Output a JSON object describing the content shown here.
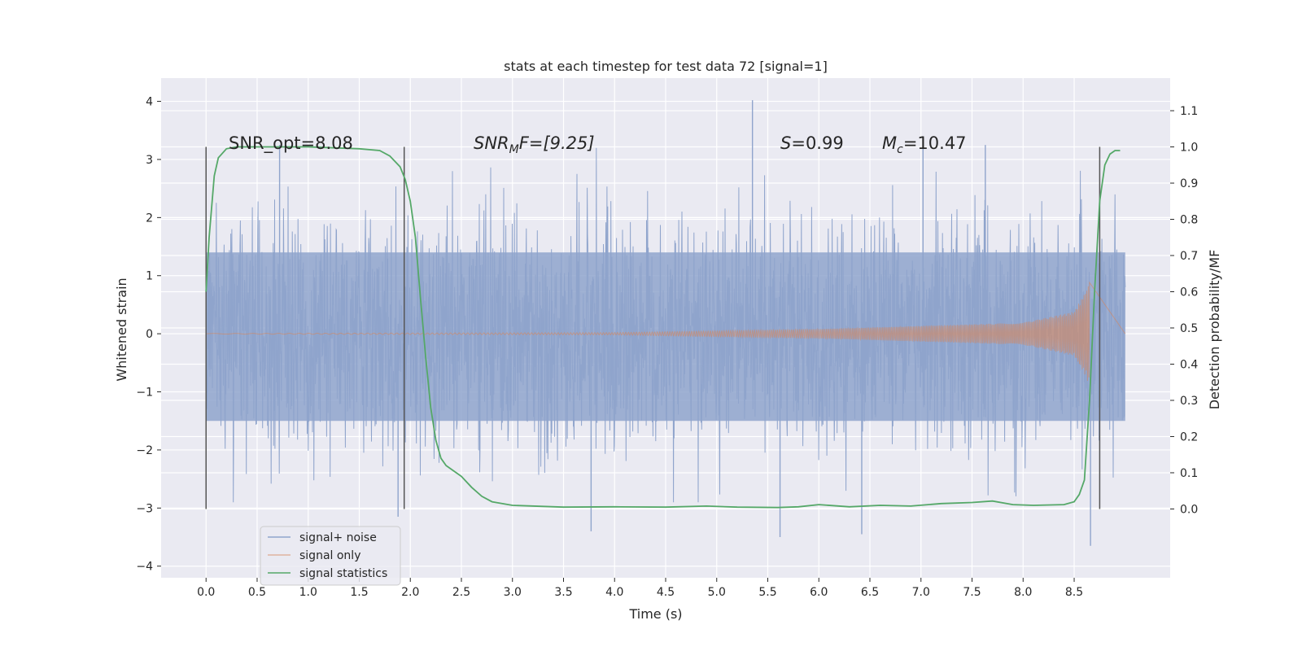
{
  "chart_data": {
    "type": "line",
    "title": "stats at each timestep for test data 72 [signal=1]",
    "xlabel": "Time (s)",
    "ylabel_left": "Whitened strain",
    "ylabel_right": "Detection probability/MF",
    "xlim": [
      -0.44,
      9.44
    ],
    "ylim_left": [
      -4.2,
      4.4
    ],
    "ylim_right": [
      -0.19,
      1.19
    ],
    "x_ticks": [
      "0.0",
      "0.5",
      "1.0",
      "1.5",
      "2.0",
      "2.5",
      "3.0",
      "3.5",
      "4.0",
      "4.5",
      "5.0",
      "5.5",
      "6.0",
      "6.5",
      "7.0",
      "7.5",
      "8.0",
      "8.5"
    ],
    "y_ticks_left": [
      "4",
      "3",
      "2",
      "1",
      "0",
      "−1",
      "−2",
      "−3",
      "−4"
    ],
    "y_ticks_right": [
      "1.1",
      "1.0",
      "0.9",
      "0.8",
      "0.7",
      "0.6",
      "0.5",
      "0.4",
      "0.3",
      "0.2",
      "0.1",
      "0.0"
    ],
    "annotations": {
      "snr_opt": "SNR_opt=8.08",
      "snr_mf_base": "SNR",
      "snr_mf_sub": "M",
      "snr_mf_tail": "F=[9.25]",
      "s_main": "S",
      "s_tail": "=0.99",
      "mc_main": "M",
      "mc_sub": "c",
      "mc_tail": "=10.47"
    },
    "vertical_markers_x": [
      0.0,
      1.94,
      8.75
    ],
    "legend": {
      "position": "lower-left",
      "entries": [
        "signal+ noise",
        "signal only",
        "signal statistics"
      ]
    },
    "series": [
      {
        "name": "signal+ noise",
        "axis": "left",
        "color": "#8fa4cc",
        "x_range": [
          0.0,
          9.0
        ],
        "band_upper": 1.4,
        "band_lower": -1.5,
        "spike_max": 4.0,
        "spike_min": -3.7,
        "notable_spikes": [
          {
            "x": 5.35,
            "y": 4.02
          },
          {
            "x": 8.66,
            "y": -3.65
          },
          {
            "x": 5.62,
            "y": -3.5
          },
          {
            "x": 3.77,
            "y": -3.4
          },
          {
            "x": 6.42,
            "y": -3.45
          },
          {
            "x": 7.63,
            "y": 3.25
          },
          {
            "x": 7.02,
            "y": 3.2
          },
          {
            "x": 0.72,
            "y": 3.25
          },
          {
            "x": 1.88,
            "y": -3.15
          }
        ]
      },
      {
        "name": "signal only",
        "axis": "left",
        "color": "#dd8452",
        "description_points": [
          {
            "x": 0.0,
            "amplitude": 0.005
          },
          {
            "x": 4.0,
            "amplitude": 0.02
          },
          {
            "x": 6.0,
            "amplitude": 0.08
          },
          {
            "x": 8.0,
            "amplitude": 0.19
          },
          {
            "x": 8.5,
            "amplitude": 0.38
          },
          {
            "x": 8.62,
            "amplitude": 0.75
          },
          {
            "x": 8.65,
            "amplitude": 0.92
          }
        ]
      },
      {
        "name": "signal statistics",
        "axis": "right",
        "color": "#55a868",
        "x": [
          0.0,
          0.03,
          0.08,
          0.12,
          0.2,
          0.3,
          0.5,
          1.0,
          1.5,
          1.7,
          1.8,
          1.9,
          1.95,
          2.0,
          2.05,
          2.1,
          2.15,
          2.2,
          2.25,
          2.3,
          2.35,
          2.4,
          2.5,
          2.6,
          2.7,
          2.8,
          3.0,
          3.5,
          4.0,
          4.5,
          4.9,
          5.2,
          5.6,
          5.8,
          6.0,
          6.3,
          6.6,
          6.9,
          7.2,
          7.5,
          7.7,
          7.9,
          8.1,
          8.4,
          8.5,
          8.55,
          8.6,
          8.65,
          8.7,
          8.75,
          8.8,
          8.85,
          8.9,
          8.95
        ],
        "values": [
          0.6,
          0.75,
          0.92,
          0.97,
          0.995,
          1.0,
          1.0,
          1.0,
          0.995,
          0.99,
          0.975,
          0.945,
          0.91,
          0.85,
          0.75,
          0.58,
          0.42,
          0.28,
          0.19,
          0.14,
          0.12,
          0.11,
          0.09,
          0.06,
          0.035,
          0.02,
          0.01,
          0.005,
          0.006,
          0.005,
          0.008,
          0.005,
          0.004,
          0.006,
          0.012,
          0.006,
          0.01,
          0.008,
          0.015,
          0.018,
          0.022,
          0.012,
          0.01,
          0.012,
          0.02,
          0.04,
          0.08,
          0.3,
          0.6,
          0.85,
          0.95,
          0.98,
          0.99,
          0.99
        ]
      }
    ]
  }
}
